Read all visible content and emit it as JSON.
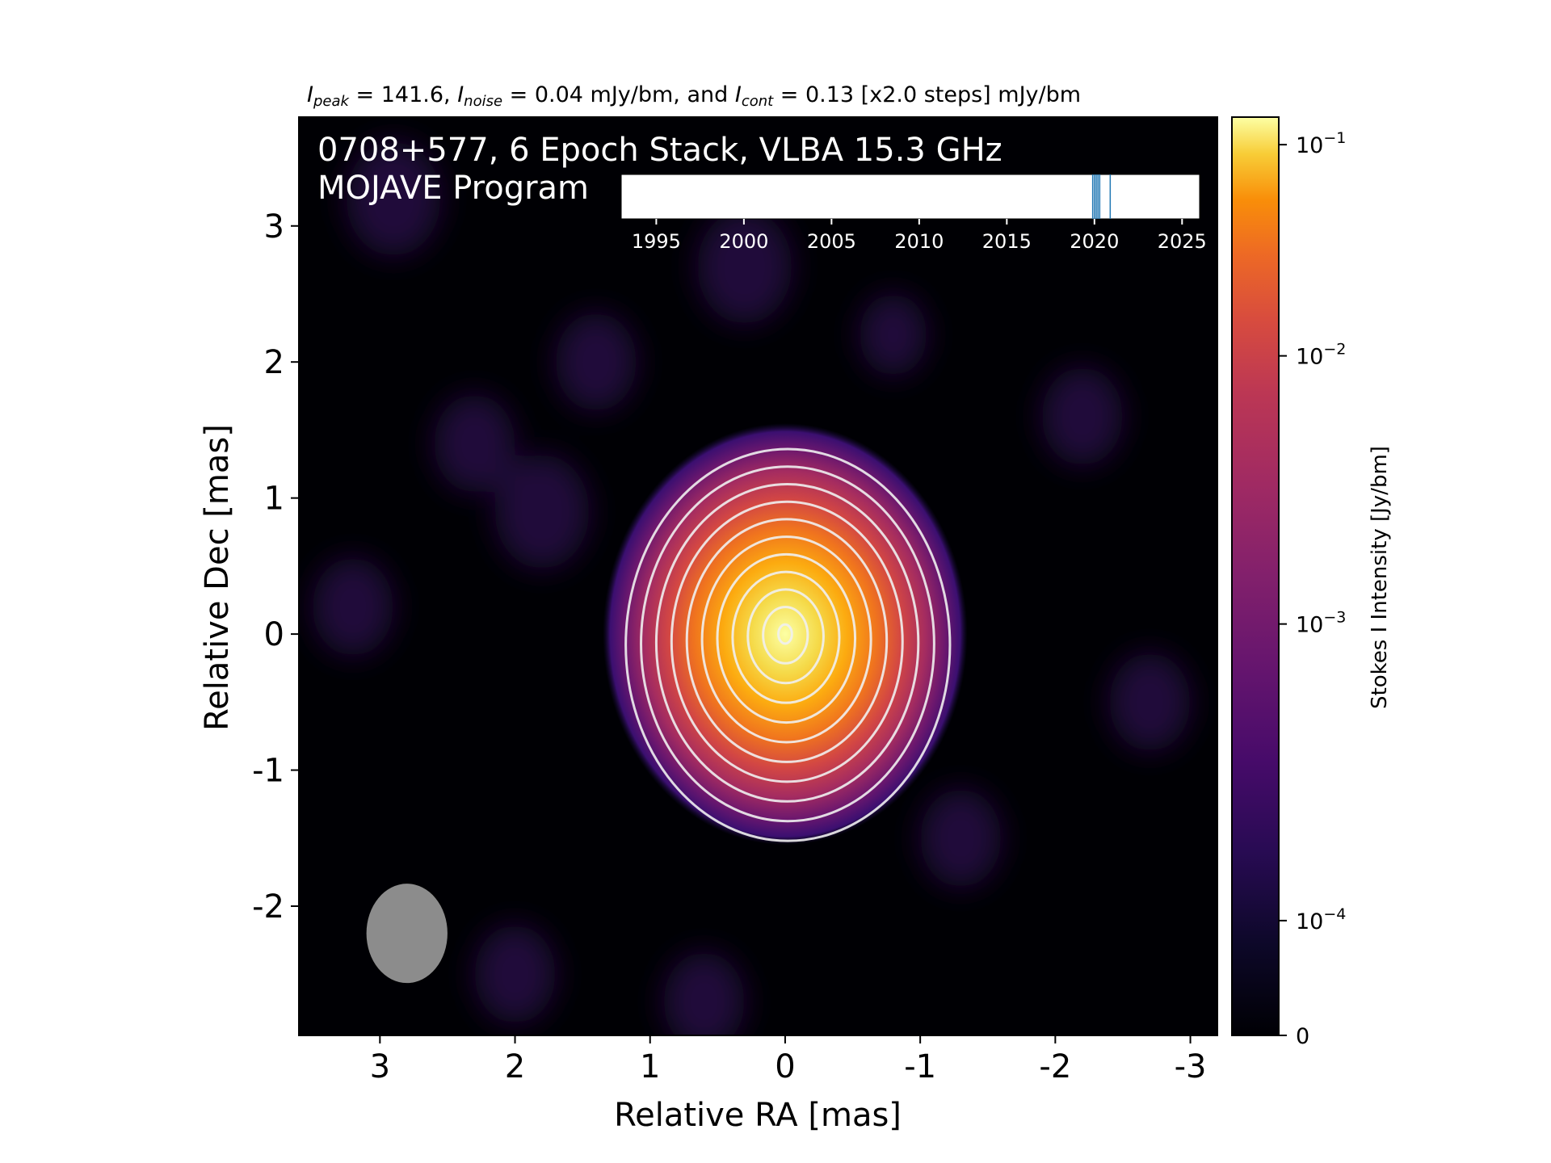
{
  "header": {
    "peak_label": "I",
    "peak_sub": "peak",
    "peak_text": " = 141.6, ",
    "noise_label": "I",
    "noise_sub": "noise",
    "noise_text": " = 0.04 mJy/bm, and ",
    "cont_label": "I",
    "cont_sub": "cont",
    "cont_text": " = 0.13 [x2.0 steps] mJy/bm"
  },
  "chart_data": [
    {
      "type": "heatmap",
      "title_line1": "0708+577, 6 Epoch Stack, VLBA 15.3 GHz",
      "title_line2": "MOJAVE Program",
      "xlabel": "Relative RA [mas]",
      "ylabel": "Relative Dec [mas]",
      "xlim": [
        3.6,
        -3.2
      ],
      "ylim": [
        -2.95,
        3.8
      ],
      "x_ticks": [
        3,
        2,
        1,
        0,
        -1,
        -2,
        -3
      ],
      "x_tick_labels": [
        "3",
        "2",
        "1",
        "0",
        "-1",
        "-2",
        "-3"
      ],
      "y_ticks": [
        3,
        2,
        1,
        0,
        -1,
        -2
      ],
      "y_tick_labels": [
        "3",
        "2",
        "1",
        "0",
        "-1",
        "-2"
      ],
      "colormap": "inferno",
      "peak_position": [
        0,
        0
      ],
      "contour_levels_mJy": [
        0.13,
        0.26,
        0.52,
        1.04,
        2.08,
        4.16,
        8.32,
        16.64,
        33.28,
        66.56,
        133.12
      ],
      "contour_color": "#f0f0f0",
      "beam": {
        "x": 2.8,
        "y": -2.2,
        "major_mas": 0.73,
        "minor_mas": 0.6,
        "color": "#8c8c8c"
      }
    },
    {
      "type": "colorbar",
      "label": "Stokes I Intensity [Jy/bm]",
      "ticks": [
        0,
        0.0001,
        0.001,
        0.01,
        0.1
      ],
      "tick_labels": [
        "0",
        "10",
        "10",
        "10",
        "10"
      ],
      "tick_exponents": [
        "",
        "−4",
        "−3",
        "−2",
        "−1"
      ],
      "range": [
        0,
        0.1416
      ],
      "scale": "log"
    },
    {
      "type": "timeline",
      "xlim": [
        1993,
        2026
      ],
      "ticks": [
        1995,
        2000,
        2005,
        2010,
        2015,
        2020,
        2025
      ],
      "tick_labels": [
        "1995",
        "2000",
        "2005",
        "2010",
        "2015",
        "2020",
        "2025"
      ],
      "epochs": [
        2019.9,
        2020.0,
        2020.1,
        2020.2,
        2020.3,
        2020.9
      ],
      "line_color": "#1f77b4"
    }
  ]
}
